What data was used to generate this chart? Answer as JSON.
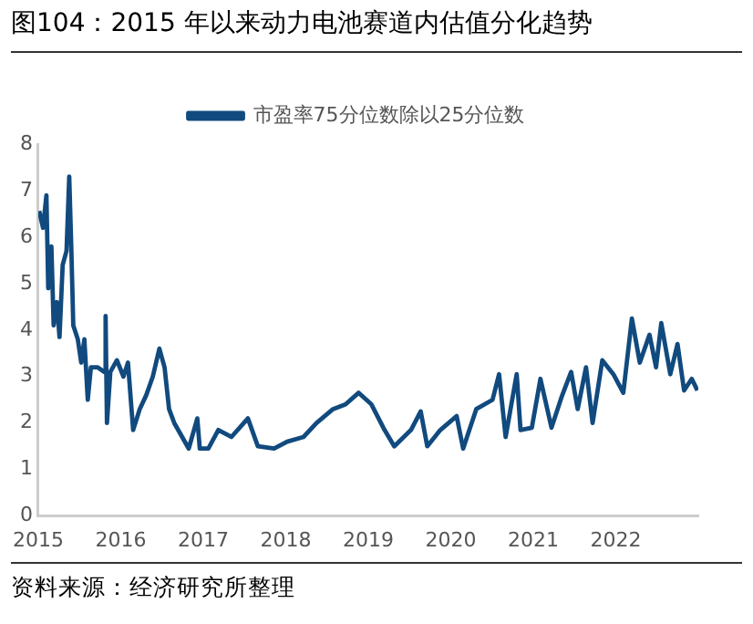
{
  "chart_data": {
    "type": "line",
    "title": "图104：2015 年以来动力电池赛道内估值分化趋势",
    "annotations": [
      "资料来源：经济研究所整理"
    ],
    "series": [
      {
        "name": "市盈率75分位数除以25分位数",
        "color": "#114a7e",
        "x": [
          "2015-01-05",
          "2015-01-22",
          "2015-02-06",
          "2015-02-14",
          "2015-02-28",
          "2015-03-10",
          "2015-03-24",
          "2015-04-05",
          "2015-04-19",
          "2015-05-06",
          "2015-05-18",
          "2015-05-27",
          "2015-06-05",
          "2015-06-25",
          "2015-07-10",
          "2015-07-24",
          "2015-08-08",
          "2015-08-22",
          "2015-09-20",
          "2015-10-20",
          "2015-10-26",
          "2015-11-01",
          "2015-11-16",
          "2015-12-15",
          "2016-01-13",
          "2016-02-02",
          "2016-02-25",
          "2016-03-25",
          "2016-04-23",
          "2016-05-22",
          "2016-06-20",
          "2016-07-13",
          "2016-08-02",
          "2016-08-25",
          "2016-09-29",
          "2016-10-28",
          "2016-12-05",
          "2016-12-16",
          "2017-01-23",
          "2017-03-08",
          "2017-05-05",
          "2017-07-17",
          "2017-08-30",
          "2017-11-10",
          "2018-01-07",
          "2018-03-20",
          "2018-05-17",
          "2018-07-29",
          "2018-09-22",
          "2018-11-19",
          "2019-01-15",
          "2019-03-14",
          "2019-04-26",
          "2019-07-09",
          "2019-08-21",
          "2019-09-19",
          "2019-11-16",
          "2020-01-27",
          "2020-02-25",
          "2020-04-23",
          "2020-07-04",
          "2020-08-02",
          "2020-08-31",
          "2020-10-19",
          "2020-11-05",
          "2020-12-25",
          "2021-02-01",
          "2021-03-22",
          "2021-05-05",
          "2021-06-17",
          "2021-07-16",
          "2021-08-22",
          "2021-09-20",
          "2021-11-02",
          "2021-12-21",
          "2022-02-03",
          "2022-03-13",
          "2022-04-17",
          "2022-05-30",
          "2022-06-28",
          "2022-07-21",
          "2022-08-30",
          "2022-10-01",
          "2022-10-30",
          "2022-12-03",
          "2022-12-28"
        ],
        "values": [
          6.56,
          6.2,
          6.9,
          4.9,
          5.8,
          4.1,
          4.6,
          3.85,
          5.4,
          5.7,
          7.3,
          5.8,
          4.1,
          3.8,
          3.3,
          3.8,
          2.5,
          3.2,
          3.2,
          3.1,
          4.3,
          2.0,
          3.1,
          3.35,
          3.0,
          3.3,
          1.85,
          2.3,
          2.6,
          3.0,
          3.6,
          3.2,
          2.3,
          2.0,
          1.7,
          1.45,
          2.1,
          1.45,
          1.45,
          1.85,
          1.7,
          2.1,
          1.5,
          1.45,
          1.6,
          1.7,
          2.0,
          2.3,
          2.4,
          2.65,
          2.4,
          1.85,
          1.5,
          1.85,
          2.25,
          1.5,
          1.85,
          2.15,
          1.45,
          2.3,
          2.5,
          3.05,
          1.7,
          3.05,
          1.85,
          1.9,
          2.95,
          1.9,
          2.55,
          3.1,
          2.3,
          3.2,
          2.0,
          3.35,
          3.05,
          2.65,
          4.25,
          3.3,
          3.9,
          3.2,
          4.15,
          3.05,
          3.7,
          2.7,
          2.95,
          2.7
        ]
      }
    ],
    "xlim": [
      "2015-01-01",
      "2023-01-01"
    ],
    "xticks": [
      "2015",
      "2016",
      "2017",
      "2018",
      "2019",
      "2020",
      "2021",
      "2022"
    ],
    "ylim": [
      0,
      8
    ],
    "yticks": [
      0,
      1,
      2,
      3,
      4,
      5,
      6,
      7,
      8
    ],
    "grid": false,
    "legend": "top",
    "marker": "none",
    "line_style": "solid"
  }
}
